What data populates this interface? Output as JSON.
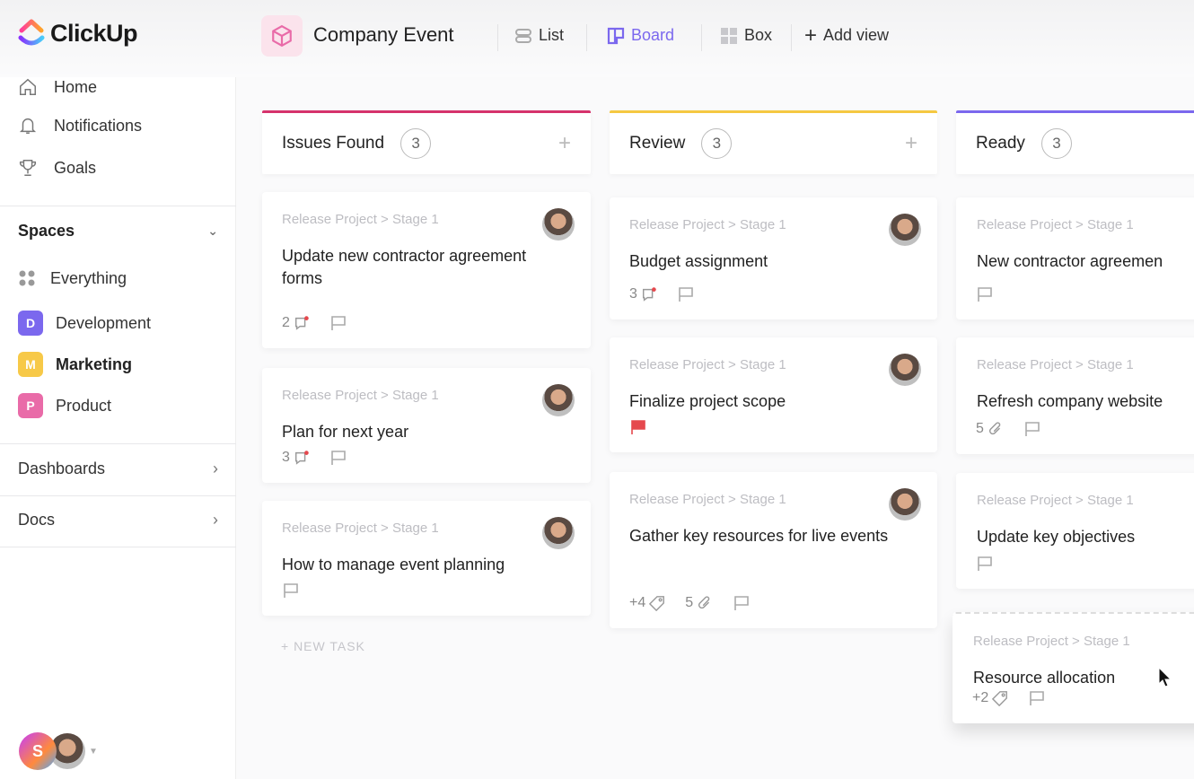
{
  "app": {
    "name": "ClickUp"
  },
  "header": {
    "project_title": "Company Event",
    "views": [
      {
        "label": "List",
        "icon": "list-icon"
      },
      {
        "label": "Board",
        "icon": "board-icon",
        "active": true
      },
      {
        "label": "Box",
        "icon": "box-icon"
      },
      {
        "label": "Add view",
        "icon": "plus-icon"
      }
    ]
  },
  "sidebar": {
    "nav": [
      {
        "label": "Home",
        "icon": "home-icon"
      },
      {
        "label": "Notifications",
        "icon": "bell-icon"
      },
      {
        "label": "Goals",
        "icon": "trophy-icon"
      }
    ],
    "spaces_label": "Spaces",
    "spaces": [
      {
        "label": "Everything",
        "icon": "grid-dots-icon"
      },
      {
        "label": "Development",
        "letter": "D",
        "color": "#7b68ee"
      },
      {
        "label": "Marketing",
        "letter": "M",
        "color": "#f7c948",
        "bold": true
      },
      {
        "label": "Product",
        "letter": "P",
        "color": "#e96ba8"
      }
    ],
    "dashboards_label": "Dashboards",
    "docs_label": "Docs",
    "user_initial": "S"
  },
  "colors": {
    "accent": "#7b68ee",
    "issues": "#d6336c",
    "review": "#f5c842",
    "ready": "#7b68ee",
    "flag_red": "#e5484d",
    "dot_red": "#e5484d"
  },
  "board": {
    "new_task_label": "+ NEW TASK",
    "columns": [
      {
        "title": "Issues Found",
        "count": "3",
        "color": "#d6336c",
        "cards": [
          {
            "breadcrumb": "Release Project > Stage 1",
            "title": "Update new contractor agreement forms",
            "avatar": true,
            "footer": [
              {
                "type": "comments",
                "value": "2"
              },
              {
                "type": "flag"
              }
            ]
          },
          {
            "breadcrumb": "Release Project > Stage 1",
            "title": "Plan for next year",
            "avatar": true,
            "footer": [
              {
                "type": "comments",
                "value": "3"
              },
              {
                "type": "flag"
              }
            ]
          },
          {
            "breadcrumb": "Release Project > Stage 1",
            "title": "How to manage event planning",
            "avatar": true,
            "footer": [
              {
                "type": "flag"
              }
            ]
          }
        ]
      },
      {
        "title": "Review",
        "count": "3",
        "color": "#f5c842",
        "cards": [
          {
            "breadcrumb": "Release Project > Stage 1",
            "title": "Budget assignment",
            "avatar": true,
            "footer": [
              {
                "type": "comments",
                "value": "3"
              },
              {
                "type": "flag"
              }
            ]
          },
          {
            "breadcrumb": "Release Project > Stage 1",
            "title": "Finalize project scope",
            "avatar": true,
            "footer": [
              {
                "type": "flag-red"
              }
            ]
          },
          {
            "breadcrumb": "Release Project > Stage 1",
            "title": "Gather key resources for live events",
            "avatar": true,
            "footer": [
              {
                "type": "tags",
                "value": "+4"
              },
              {
                "type": "attachments",
                "value": "5"
              },
              {
                "type": "flag"
              }
            ]
          }
        ]
      },
      {
        "title": "Ready",
        "count": "3",
        "color": "#7b68ee",
        "cards": [
          {
            "breadcrumb": "Release Project > Stage 1",
            "title": "New contractor agreemen",
            "footer": [
              {
                "type": "flag"
              }
            ]
          },
          {
            "breadcrumb": "Release Project > Stage 1",
            "title": "Refresh company website",
            "footer": [
              {
                "type": "attachments",
                "value": "5"
              },
              {
                "type": "flag"
              }
            ]
          },
          {
            "breadcrumb": "Release Project > Stage 1",
            "title": "Update key objectives",
            "footer": [
              {
                "type": "flag"
              }
            ]
          },
          {
            "breadcrumb": "Release Project > Stage 1",
            "title": "Resource allocation",
            "dragging": true,
            "footer": [
              {
                "type": "tags",
                "value": "+2"
              },
              {
                "type": "flag"
              }
            ]
          }
        ]
      }
    ]
  }
}
